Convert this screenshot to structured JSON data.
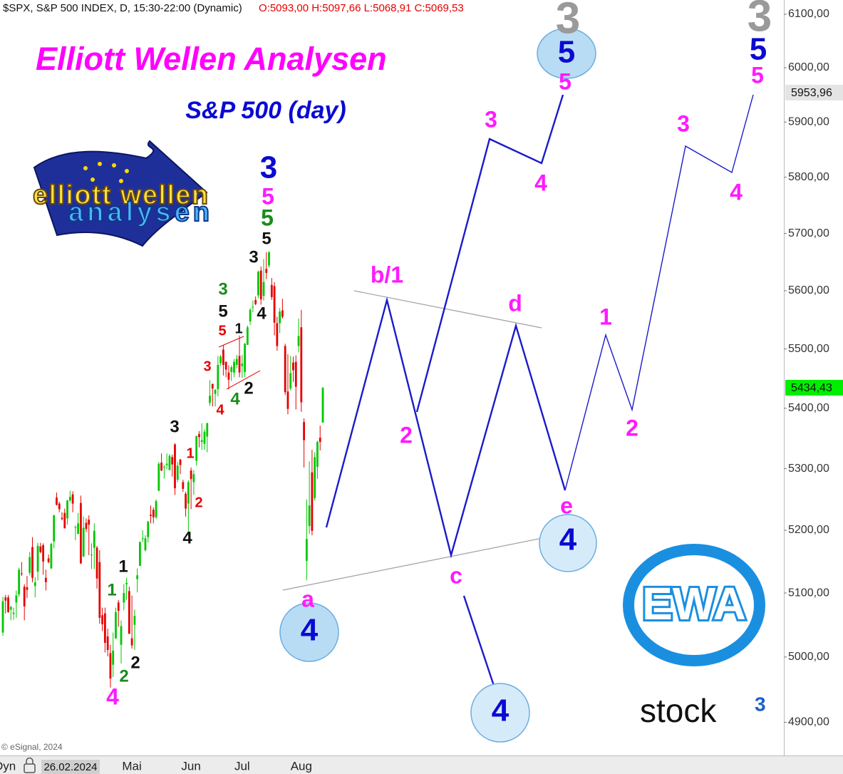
{
  "chart_data": {
    "type": "candlestick",
    "symbol_line": "$SPX, S&P 500 INDEX, D, 15:30-22:00 (Dynamic)",
    "ohlc_line": "O:5093,00 H:5097,66 L:5068,91 C:5069,53",
    "title": "Elliott Wellen Analysen",
    "subtitle": "S&P 500 (day)",
    "mode": "Dyn",
    "cursor_date": "26.02.2024",
    "copyright": "© eSignal, 2024",
    "log_scale": true,
    "up_color": "#00c800",
    "down_color": "#e60000",
    "ylim": [
      4850,
      6127
    ],
    "yticks": [
      {
        "value": 4900,
        "label": "4900,00"
      },
      {
        "value": 5000,
        "label": "5000,00"
      },
      {
        "value": 5100,
        "label": "5100,00"
      },
      {
        "value": 5200,
        "label": "5200,00"
      },
      {
        "value": 5300,
        "label": "5300,00"
      },
      {
        "value": 5400,
        "label": "5400,00"
      },
      {
        "value": 5500,
        "label": "5500,00"
      },
      {
        "value": 5600,
        "label": "5600,00"
      },
      {
        "value": 5700,
        "label": "5700,00"
      },
      {
        "value": 5800,
        "label": "5800,00"
      },
      {
        "value": 5900,
        "label": "5900,00"
      },
      {
        "value": 6000,
        "label": "6000,00"
      },
      {
        "value": 6100,
        "label": "6100,00"
      }
    ],
    "price_markers": [
      {
        "value": 5953.96,
        "label": "5953,96",
        "color": "#e4e4e4"
      },
      {
        "value": 5434.43,
        "label": "5434,43",
        "color": "#00ee00"
      }
    ],
    "categories": [
      null,
      null,
      null,
      null,
      null,
      null,
      null,
      null,
      null,
      null,
      null,
      null,
      null,
      null,
      null,
      null,
      null,
      null,
      null,
      null,
      null,
      null,
      null,
      null,
      null,
      null,
      null,
      null,
      null,
      null,
      null,
      null,
      null,
      null,
      null,
      null,
      null,
      null,
      null,
      null,
      null,
      null,
      null,
      null,
      null,
      null,
      null,
      null,
      "Mai",
      null,
      null,
      null,
      null,
      null,
      null,
      null,
      null,
      null,
      null,
      null,
      null,
      null,
      null,
      null,
      null,
      null,
      null,
      null,
      null,
      null,
      "Jun",
      null,
      null,
      null,
      null,
      null,
      null,
      null,
      null,
      null,
      null,
      null,
      null,
      null,
      null,
      null,
      null,
      null,
      null,
      "Jul",
      null,
      null,
      null,
      null,
      null,
      null,
      null,
      null,
      null,
      null,
      null,
      null,
      null,
      null,
      null,
      null,
      null,
      null,
      null,
      null,
      null,
      "Aug",
      null,
      null,
      null,
      null,
      null,
      null,
      null,
      null
    ],
    "ohlc": [
      [
        5038,
        5094,
        5033,
        5087
      ],
      [
        5093,
        5097,
        5068,
        5088
      ],
      [
        5093,
        5097,
        5069,
        5070
      ],
      [
        5074,
        5080,
        5057,
        5078
      ],
      [
        5067,
        5077,
        5058,
        5069
      ],
      [
        5085,
        5104,
        5061,
        5096
      ],
      [
        5098,
        5140,
        5094,
        5137
      ],
      [
        5131,
        5149,
        5127,
        5130
      ],
      [
        5110,
        5114,
        5057,
        5079
      ],
      [
        5109,
        5127,
        5092,
        5105
      ],
      [
        5132,
        5165,
        5128,
        5157
      ],
      [
        5173,
        5189,
        5117,
        5124
      ],
      [
        5111,
        5125,
        5093,
        5117
      ],
      [
        5134,
        5180,
        5120,
        5175
      ],
      [
        5174,
        5180,
        5163,
        5165
      ],
      [
        5176,
        5179,
        5129,
        5150
      ],
      [
        5124,
        5137,
        5104,
        5117
      ],
      [
        5155,
        5161,
        5147,
        5149
      ],
      [
        5139,
        5180,
        5138,
        5178
      ],
      [
        5182,
        5225,
        5171,
        5224
      ],
      [
        5253,
        5261,
        5240,
        5241
      ],
      [
        5243,
        5246,
        5229,
        5234
      ],
      [
        5220,
        5229,
        5216,
        5218
      ],
      [
        5228,
        5235,
        5203,
        5203
      ],
      [
        5219,
        5249,
        5209,
        5248
      ],
      [
        5248,
        5264,
        5246,
        5254
      ],
      [
        5258,
        5263,
        5229,
        5243
      ],
      [
        5204,
        5208,
        5184,
        5205
      ],
      [
        5194,
        5228,
        5194,
        5211
      ],
      [
        5244,
        5256,
        5146,
        5147
      ],
      [
        5158,
        5222,
        5157,
        5204
      ],
      [
        5212,
        5219,
        5197,
        5202
      ],
      [
        5217,
        5224,
        5160,
        5209
      ],
      [
        5160,
        5179,
        5138,
        5161
      ],
      [
        5172,
        5211,
        5138,
        5199
      ],
      [
        5172,
        5175,
        5107,
        5123
      ],
      [
        5149,
        5168,
        5052,
        5061
      ],
      [
        5065,
        5077,
        5040,
        5051
      ],
      [
        5068,
        5077,
        5007,
        5022
      ],
      [
        5032,
        5044,
        5001,
        5011
      ],
      [
        5006,
        5019,
        4953,
        4967
      ],
      [
        4988,
        5038,
        4969,
        5010
      ],
      [
        5029,
        5077,
        5028,
        5070
      ],
      [
        5085,
        5089,
        5047,
        5072
      ],
      [
        5019,
        5057,
        4990,
        5048
      ],
      [
        5085,
        5114,
        5073,
        5100
      ],
      [
        5114,
        5124,
        5089,
        5116
      ],
      [
        5103,
        5110,
        5036,
        5036
      ],
      [
        5029,
        5096,
        5013,
        5018
      ],
      [
        5050,
        5074,
        5011,
        5064
      ],
      [
        5122,
        5139,
        5101,
        5128
      ],
      [
        5143,
        5182,
        5143,
        5181
      ],
      [
        5187,
        5200,
        5181,
        5187
      ],
      [
        5168,
        5192,
        5166,
        5187
      ],
      [
        5189,
        5215,
        5180,
        5214
      ],
      [
        5225,
        5240,
        5211,
        5223
      ],
      [
        5233,
        5237,
        5211,
        5221
      ],
      [
        5221,
        5250,
        5218,
        5247
      ],
      [
        5264,
        5311,
        5263,
        5308
      ],
      [
        5310,
        5325,
        5296,
        5297
      ],
      [
        5303,
        5306,
        5284,
        5303
      ],
      [
        5306,
        5325,
        5299,
        5308
      ],
      [
        5298,
        5324,
        5297,
        5321
      ],
      [
        5319,
        5323,
        5287,
        5307
      ],
      [
        5340,
        5342,
        5257,
        5268
      ],
      [
        5282,
        5311,
        5278,
        5305
      ],
      [
        5315,
        5316,
        5291,
        5306
      ],
      [
        5278,
        5282,
        5262,
        5267
      ],
      [
        5259,
        5262,
        5222,
        5235
      ],
      [
        5243,
        5281,
        5191,
        5278
      ],
      [
        5297,
        5302,
        5234,
        5283
      ],
      [
        5278,
        5298,
        5257,
        5291
      ],
      [
        5313,
        5354,
        5305,
        5354
      ],
      [
        5357,
        5362,
        5335,
        5352
      ],
      [
        5344,
        5375,
        5331,
        5347
      ],
      [
        5341,
        5365,
        5331,
        5361
      ],
      [
        5353,
        5376,
        5327,
        5375
      ],
      [
        5409,
        5447,
        5404,
        5421
      ],
      [
        5441,
        5441,
        5403,
        5433
      ],
      [
        5424,
        5432,
        5403,
        5431
      ],
      [
        5432,
        5488,
        5420,
        5473
      ],
      [
        5476,
        5490,
        5471,
        5487
      ],
      [
        5499,
        5506,
        5455,
        5473
      ],
      [
        5478,
        5479,
        5452,
        5465
      ],
      [
        5460,
        5472,
        5432,
        5448
      ],
      [
        5461,
        5472,
        5446,
        5469
      ],
      [
        5460,
        5483,
        5452,
        5478
      ],
      [
        5473,
        5490,
        5467,
        5483
      ],
      [
        5488,
        5523,
        5452,
        5460
      ],
      [
        5471,
        5490,
        5451,
        5475
      ],
      [
        5461,
        5510,
        5452,
        5509
      ],
      [
        5507,
        5540,
        5507,
        5537
      ],
      [
        5547,
        5570,
        5541,
        5567
      ],
      [
        5572,
        5583,
        5563,
        5572
      ],
      [
        5584,
        5590,
        5575,
        5577
      ],
      [
        5592,
        5635,
        5587,
        5633
      ],
      [
        5635,
        5642,
        5576,
        5585
      ],
      [
        5591,
        5655,
        5583,
        5615
      ],
      [
        5638,
        5667,
        5620,
        5631
      ],
      [
        5644,
        5669,
        5640,
        5667
      ],
      [
        5610,
        5622,
        5584,
        5589
      ],
      [
        5608,
        5615,
        5523,
        5545
      ],
      [
        5544,
        5555,
        5497,
        5505
      ],
      [
        5544,
        5570,
        5527,
        5564
      ],
      [
        5566,
        5586,
        5552,
        5555
      ],
      [
        5505,
        5509,
        5422,
        5427
      ],
      [
        5428,
        5491,
        5390,
        5399
      ],
      [
        5433,
        5488,
        5430,
        5459
      ],
      [
        5477,
        5487,
        5444,
        5464
      ],
      [
        5478,
        5489,
        5398,
        5436
      ],
      [
        5505,
        5552,
        5494,
        5522
      ],
      [
        5537,
        5567,
        5394,
        5410
      ],
      [
        5377,
        5383,
        5302,
        5347
      ],
      [
        5151,
        5250,
        5120,
        5186
      ],
      [
        5207,
        5312,
        5194,
        5240
      ],
      [
        5294,
        5331,
        5192,
        5199
      ],
      [
        5252,
        5327,
        5248,
        5319
      ],
      [
        5303,
        5346,
        5283,
        5344
      ],
      [
        5351,
        5371,
        5330,
        5344
      ],
      [
        5376,
        5436,
        5376,
        5434
      ]
    ],
    "wave_labels": [
      "3",
      "5",
      "5",
      "3",
      "5",
      "5",
      "3",
      "5",
      "5",
      "5",
      "3",
      "4",
      "3",
      "4",
      "b/1",
      "d",
      "1",
      "2",
      "2",
      "e",
      "c",
      "a",
      "4",
      "4",
      "4",
      "3",
      "4",
      "3",
      "5",
      "1",
      "5",
      "3",
      "2",
      "4",
      "4",
      "3",
      "1",
      "2",
      "4",
      "1",
      "1",
      "2",
      "2",
      "4"
    ]
  },
  "logos": {
    "ewa_top": "elliott wellen",
    "ewa_bottom": "analysen",
    "ewa_badge": "EWA",
    "stock_word": "stock",
    "stock_sup": "3"
  }
}
